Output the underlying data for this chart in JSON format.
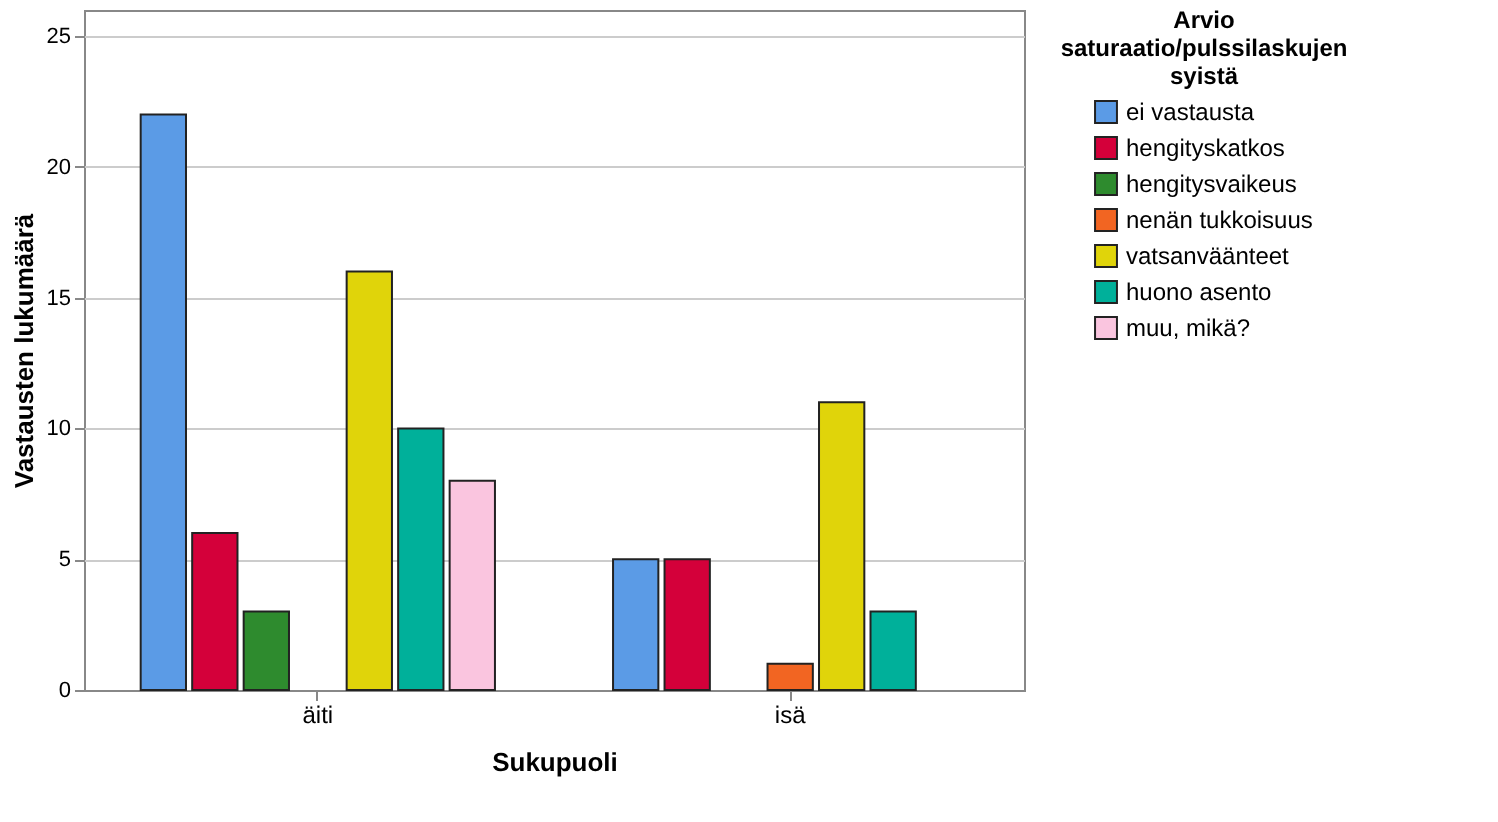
{
  "chart_data": {
    "type": "bar",
    "xlabel": "Sukupuoli",
    "ylabel": "Vastausten lukumäärä",
    "legend_title": "Arvio saturaatio/pulssilaskujen syistä",
    "categories": [
      "äiti",
      "isä"
    ],
    "series": [
      {
        "name": "ei vastausta",
        "color": "#5b9be6",
        "values": [
          22,
          5
        ]
      },
      {
        "name": "hengityskatkos",
        "color": "#d4003a",
        "values": [
          6,
          5
        ]
      },
      {
        "name": "hengitysvaikeus",
        "color": "#2e8b2e",
        "values": [
          3,
          null
        ]
      },
      {
        "name": "nenän tukkoisuus",
        "color": "#f26522",
        "values": [
          null,
          1
        ]
      },
      {
        "name": "vatsanväänteet",
        "color": "#e0d40a",
        "values": [
          16,
          11
        ]
      },
      {
        "name": "huono asento",
        "color": "#00b09a",
        "values": [
          10,
          3
        ]
      },
      {
        "name": "muu, mikä?",
        "color": "#fac5df",
        "values": [
          8,
          null
        ]
      }
    ],
    "ylim": [
      0,
      26
    ],
    "yticks": [
      0,
      5,
      10,
      15,
      20,
      25
    ],
    "grid": "y",
    "legend": "top right"
  }
}
